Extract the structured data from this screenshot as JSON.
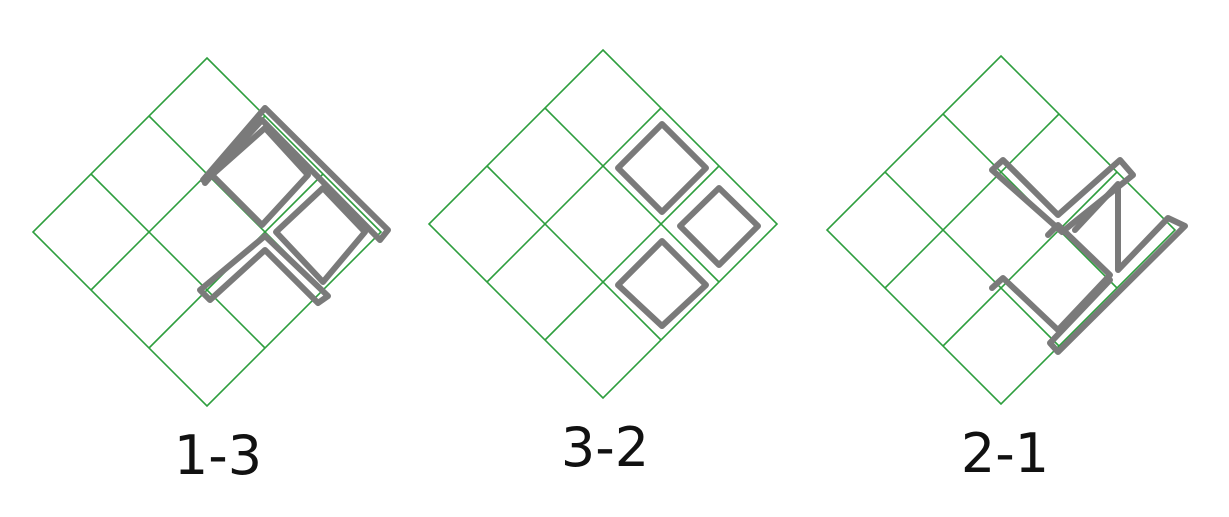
{
  "colors": {
    "grid": "#2e9e3e",
    "marks": "#7a7a7a",
    "text": "#111111"
  },
  "panels": [
    {
      "label": "1-3",
      "grid_size": 3,
      "shapes": [
        {
          "kind": "L",
          "cells": "upper-right",
          "path": [
            [
              1,
              0
            ],
            [
              1,
              1
            ],
            [
              2,
              1
            ],
            [
              2,
              2
            ]
          ]
        }
      ]
    },
    {
      "label": "3-2",
      "grid_size": 3
    },
    {
      "label": "2-1",
      "grid_size": 3
    }
  ]
}
